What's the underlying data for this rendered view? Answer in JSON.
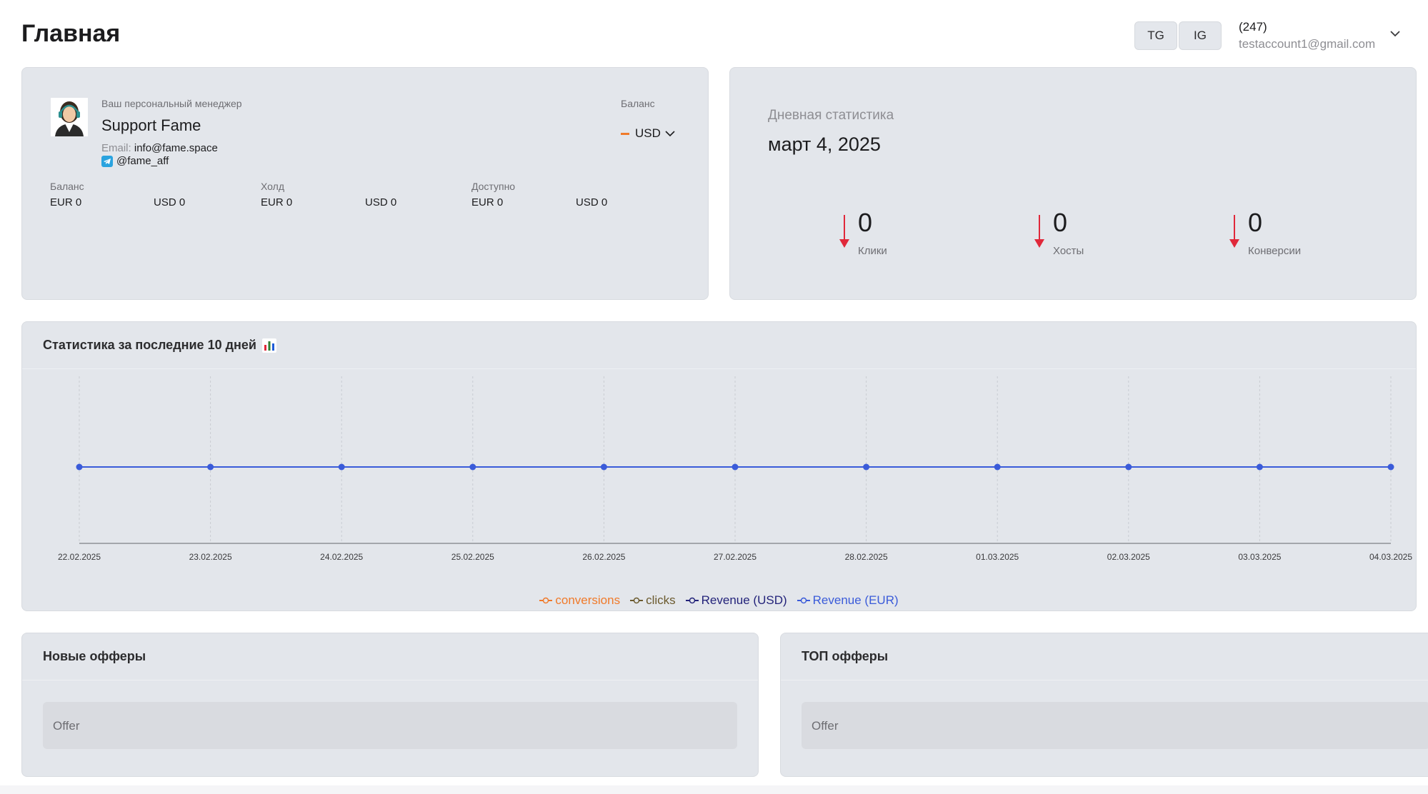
{
  "page": {
    "title": "Главная"
  },
  "header": {
    "pills": [
      "TG",
      "IG"
    ],
    "account_count": "(247)",
    "account_email": "testaccount1@gmail.com"
  },
  "manager": {
    "label": "Ваш персональный менеджер",
    "name": "Support Fame",
    "email_label": "Email:",
    "email": "info@fame.space",
    "telegram": "@fame_aff",
    "balance_label": "Баланс",
    "currency": "USD"
  },
  "finance": [
    {
      "label": "Баланс",
      "values": [
        "EUR 0",
        "USD 0"
      ]
    },
    {
      "label": "Холд",
      "values": [
        "EUR 0",
        "USD 0"
      ]
    },
    {
      "label": "Доступно",
      "values": [
        "EUR 0",
        "USD 0"
      ]
    }
  ],
  "daily": {
    "label": "Дневная статистика",
    "date": "март 4, 2025",
    "metrics": [
      {
        "value": "0",
        "label": "Клики"
      },
      {
        "value": "0",
        "label": "Хосты"
      },
      {
        "value": "0",
        "label": "Конверсии"
      }
    ]
  },
  "chart_section": {
    "title": "Статистика за последние 10 дней"
  },
  "chart_data": {
    "type": "line",
    "x": [
      "22.02.2025",
      "23.02.2025",
      "24.02.2025",
      "25.02.2025",
      "26.02.2025",
      "27.02.2025",
      "28.02.2025",
      "01.03.2025",
      "02.03.2025",
      "03.03.2025",
      "04.03.2025"
    ],
    "series": [
      {
        "name": "conversions",
        "color": "#f07a2a",
        "values": [
          0,
          0,
          0,
          0,
          0,
          0,
          0,
          0,
          0,
          0,
          0
        ]
      },
      {
        "name": "clicks",
        "color": "#6b5a2e",
        "values": [
          0,
          0,
          0,
          0,
          0,
          0,
          0,
          0,
          0,
          0,
          0
        ]
      },
      {
        "name": "Revenue (USD)",
        "color": "#23237a",
        "values": [
          0,
          0,
          0,
          0,
          0,
          0,
          0,
          0,
          0,
          0,
          0
        ]
      },
      {
        "name": "Revenue (EUR)",
        "color": "#3a5bd9",
        "values": [
          0,
          0,
          0,
          0,
          0,
          0,
          0,
          0,
          0,
          0,
          0
        ]
      }
    ],
    "grid": true,
    "legend": "bottom-center"
  },
  "new_offers": {
    "title": "Новые офферы",
    "placeholder": "Offer"
  },
  "top_offers": {
    "title": "ТОП офферы",
    "placeholder": "Offer"
  }
}
